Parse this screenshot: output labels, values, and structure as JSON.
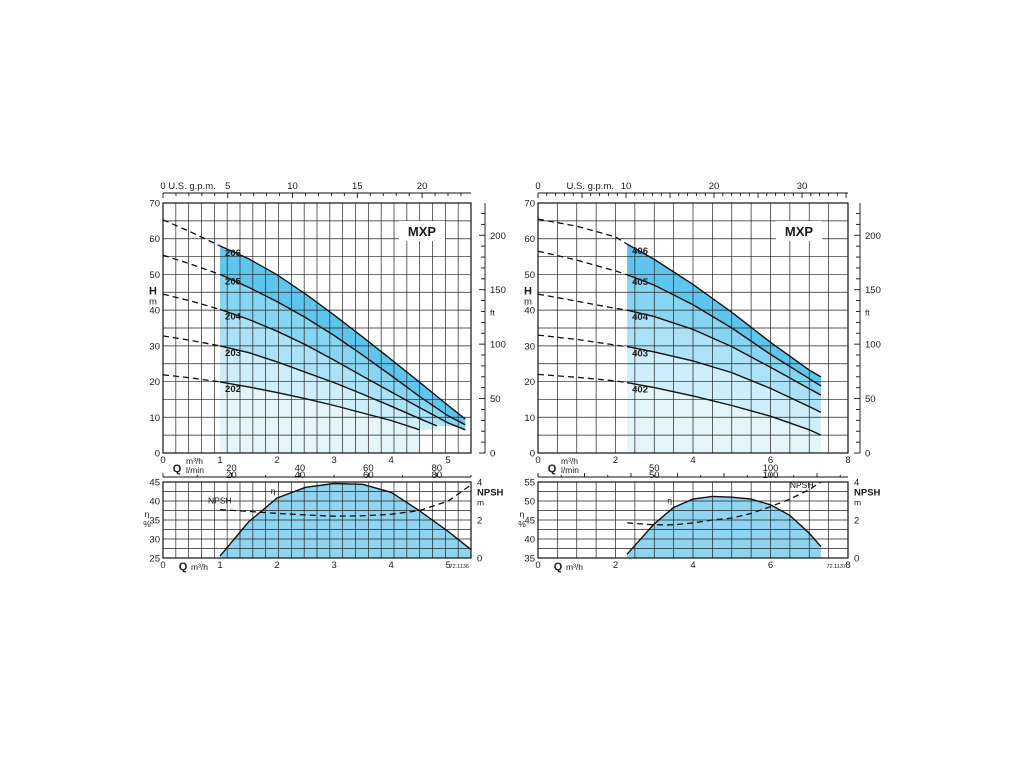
{
  "chart_data": [
    {
      "type": "line",
      "title": "MXP",
      "x_top_label": "U.S. g.p.m.",
      "x_top_ticks": [
        "0",
        "5",
        "10",
        "15",
        "20"
      ],
      "x_top_values": [
        0,
        5,
        10,
        15,
        20
      ],
      "x_label_q": "Q",
      "x_unit_m3h": "m³/h",
      "x_unit_lmin": "l/min",
      "x_m3h_ticks": [
        "0",
        "1",
        "2",
        "3",
        "4",
        "5"
      ],
      "x_lmin_ticks": [
        "20",
        "40",
        "60",
        "80"
      ],
      "x_lmin_values": [
        20,
        40,
        60,
        80
      ],
      "xlim": [
        0,
        5.4
      ],
      "y_left_label": "H",
      "y_left_unit": "m",
      "ylim": [
        0,
        70
      ],
      "y_left_ticks": [
        "0",
        "10",
        "20",
        "30",
        "40",
        "50",
        "60",
        "70"
      ],
      "y_right_unit": "ft",
      "y_right_ticks": [
        "0",
        "50",
        "100",
        "150",
        "200"
      ],
      "y_right_values": [
        0,
        50,
        100,
        150,
        200
      ],
      "operating_range": [
        1.0,
        5.3
      ],
      "fill_color": "#5ec6ee",
      "series": [
        {
          "name": "206",
          "x": [
            0,
            0.5,
            1.0,
            1.5,
            2.0,
            2.5,
            3.0,
            3.5,
            4.0,
            4.5,
            5.0,
            5.3
          ],
          "values": [
            65.3,
            61.8,
            58.0,
            54.4,
            49.9,
            44.5,
            38.6,
            32.5,
            26.2,
            19.8,
            13.3,
            9.5
          ]
        },
        {
          "name": "205",
          "x": [
            0,
            0.5,
            1.0,
            1.5,
            2.0,
            2.5,
            3.0,
            3.5,
            4.0,
            4.5,
            5.0,
            5.3
          ],
          "values": [
            55.4,
            52.8,
            50.0,
            46.4,
            42.4,
            37.9,
            32.9,
            27.4,
            21.7,
            15.8,
            10.4,
            7.9
          ]
        },
        {
          "name": "204",
          "x": [
            0,
            0.5,
            1.0,
            1.5,
            2.0,
            2.5,
            3.0,
            3.5,
            4.0,
            4.5,
            5.0,
            5.3
          ],
          "values": [
            44.5,
            42.5,
            40.2,
            37.4,
            34.1,
            30.3,
            26.0,
            21.5,
            17.1,
            12.7,
            8.4,
            6.5
          ]
        },
        {
          "name": "203",
          "x": [
            0,
            0.5,
            1.0,
            1.5,
            2.0,
            2.5,
            3.0,
            3.5,
            4.0,
            4.5,
            4.8
          ],
          "values": [
            32.8,
            31.5,
            30.0,
            28.1,
            25.5,
            22.6,
            19.7,
            16.5,
            13.1,
            9.6,
            7.6
          ]
        },
        {
          "name": "202",
          "x": [
            0,
            0.5,
            1.0,
            1.5,
            2.0,
            2.5,
            3.0,
            3.5,
            4.0,
            4.5
          ],
          "values": [
            21.9,
            21.0,
            19.9,
            18.5,
            16.9,
            15.2,
            13.3,
            11.2,
            9.1,
            6.5
          ]
        }
      ],
      "efficiency": {
        "eta_label": "η",
        "eta_unit": "%",
        "eta_ticks": [
          "25",
          "30",
          "35",
          "40",
          "45"
        ],
        "eta_lim": [
          25,
          45
        ],
        "x": [
          1.0,
          1.5,
          2.0,
          2.5,
          3.0,
          3.5,
          4.0,
          4.5,
          5.0,
          5.4
        ],
        "eta": [
          25.5,
          34.5,
          40.8,
          43.6,
          44.6,
          44.4,
          42.3,
          37.4,
          32.0,
          27.2
        ]
      },
      "npsh": {
        "label": "NPSH",
        "unit": "m",
        "ticks": [
          "0",
          "2",
          "4"
        ],
        "lim": [
          0,
          4
        ],
        "x": [
          1.0,
          1.5,
          2.0,
          2.5,
          3.0,
          3.5,
          4.0,
          4.5,
          5.0,
          5.4
        ],
        "values": [
          2.55,
          2.45,
          2.35,
          2.27,
          2.2,
          2.22,
          2.3,
          2.5,
          3.0,
          3.85
        ]
      },
      "bottom_x_ticks": [
        "0",
        "1",
        "2",
        "3",
        "4",
        "5"
      ],
      "code": "72.1136"
    },
    {
      "type": "line",
      "title": "MXP",
      "x_top_label": "U.S. g.p.m.",
      "x_top_ticks": [
        "0",
        "10",
        "20",
        "30"
      ],
      "x_top_values": [
        0,
        10,
        20,
        30
      ],
      "x_label_q": "Q",
      "x_unit_m3h": "m³/h",
      "x_unit_lmin": "l/min",
      "x_m3h_ticks": [
        "0",
        "2",
        "4",
        "6",
        "8"
      ],
      "x_lmin_ticks": [
        "50",
        "100"
      ],
      "x_lmin_values": [
        50,
        100
      ],
      "xlim": [
        0,
        8
      ],
      "y_left_label": "H",
      "y_left_unit": "m",
      "ylim": [
        0,
        70
      ],
      "y_left_ticks": [
        "0",
        "10",
        "20",
        "30",
        "40",
        "50",
        "60",
        "70"
      ],
      "y_right_unit": "ft",
      "y_right_ticks": [
        "0",
        "50",
        "100",
        "150",
        "200"
      ],
      "y_right_values": [
        0,
        50,
        100,
        150,
        200
      ],
      "operating_range": [
        2.3,
        7.3
      ],
      "fill_color": "#5ec6ee",
      "series": [
        {
          "name": "406",
          "x": [
            0,
            1.0,
            2.0,
            2.3,
            3.0,
            4.0,
            5.0,
            6.0,
            7.0,
            7.3
          ],
          "values": [
            65.5,
            63.5,
            60.5,
            58.5,
            54.2,
            47.2,
            39.4,
            31.0,
            23.2,
            21.3
          ]
        },
        {
          "name": "405",
          "x": [
            0,
            1.0,
            2.0,
            2.3,
            3.0,
            4.0,
            5.0,
            6.0,
            7.0,
            7.3
          ],
          "values": [
            56.5,
            54.0,
            51.0,
            49.9,
            47.0,
            41.5,
            35.0,
            27.6,
            20.8,
            18.8
          ]
        },
        {
          "name": "404",
          "x": [
            0,
            1.0,
            2.0,
            2.3,
            3.0,
            4.0,
            5.0,
            6.0,
            7.0,
            7.3
          ],
          "values": [
            44.5,
            42.5,
            40.5,
            40.0,
            38.2,
            34.6,
            29.8,
            24.0,
            18.0,
            16.2
          ]
        },
        {
          "name": "403",
          "x": [
            0,
            1.0,
            2.0,
            2.3,
            3.0,
            4.0,
            5.0,
            6.0,
            7.0,
            7.3
          ],
          "values": [
            33.0,
            31.8,
            30.2,
            29.8,
            28.3,
            25.8,
            22.5,
            18.1,
            13.0,
            11.4
          ]
        },
        {
          "name": "402",
          "x": [
            0,
            1.0,
            2.0,
            2.3,
            3.0,
            4.0,
            5.0,
            6.0,
            7.0,
            7.3
          ],
          "values": [
            22.0,
            21.2,
            20.2,
            19.7,
            18.3,
            16.0,
            13.3,
            10.3,
            6.5,
            5.0
          ]
        }
      ],
      "efficiency": {
        "eta_label": "η",
        "eta_unit": "%",
        "eta_ticks": [
          "35",
          "40",
          "45",
          "50",
          "55"
        ],
        "eta_lim": [
          35,
          55
        ],
        "x": [
          2.3,
          3.0,
          3.5,
          4.0,
          4.5,
          5.0,
          5.5,
          6.0,
          6.5,
          7.0,
          7.3
        ],
        "eta": [
          36.0,
          44.0,
          48.3,
          50.5,
          51.2,
          51.0,
          50.5,
          49.0,
          46.2,
          41.5,
          38.0
        ]
      },
      "npsh": {
        "label": "NPSH",
        "unit": "m",
        "ticks": [
          "0",
          "2",
          "4"
        ],
        "lim": [
          0,
          4
        ],
        "x": [
          2.3,
          3.0,
          3.5,
          4.0,
          4.5,
          5.0,
          5.5,
          6.0,
          6.5,
          7.0,
          7.3
        ],
        "values": [
          1.85,
          1.75,
          1.75,
          1.85,
          2.0,
          2.1,
          2.35,
          2.7,
          3.1,
          3.6,
          4.0
        ]
      },
      "bottom_x_ticks": [
        "0",
        "2",
        "4",
        "6",
        "8"
      ],
      "code": "72.1137"
    }
  ]
}
